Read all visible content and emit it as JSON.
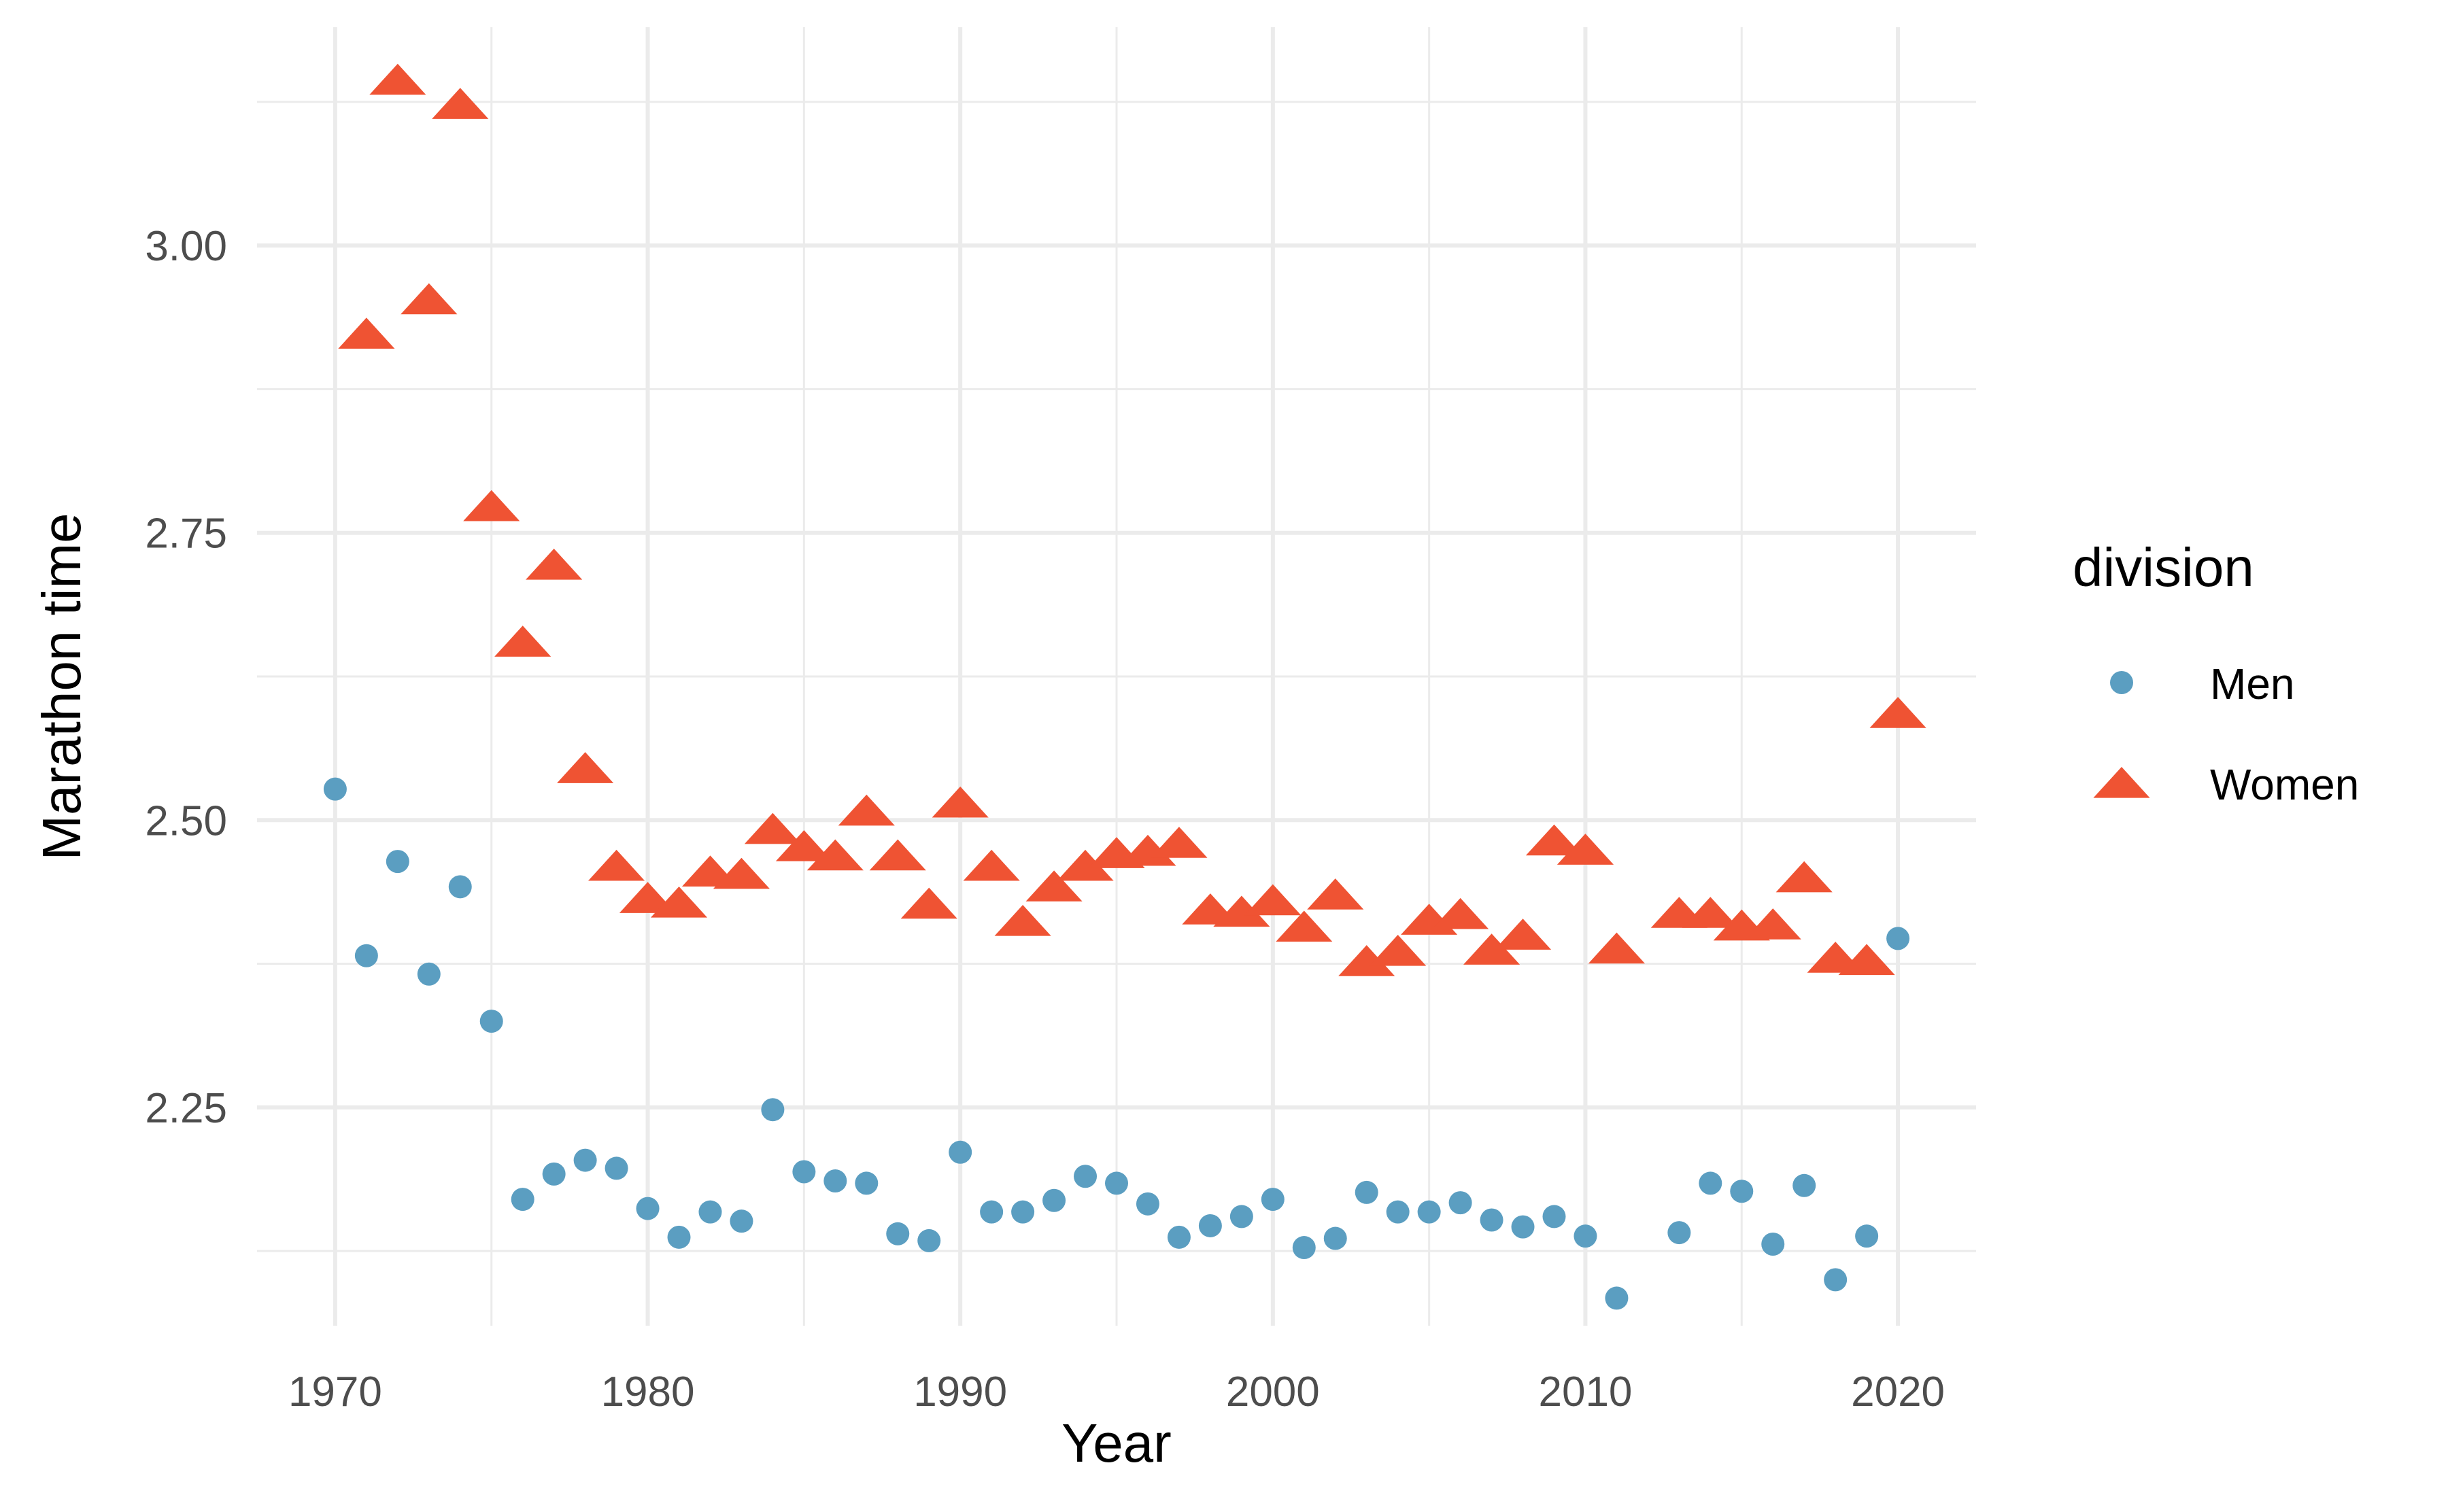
{
  "chart_data": {
    "type": "scatter",
    "xlabel": "Year",
    "ylabel": "Marathon time",
    "xlim": [
      1967.5,
      2022.5
    ],
    "ylim": [
      2.06,
      3.19
    ],
    "x_ticks": [
      1970,
      1980,
      1990,
      2000,
      2010,
      2020
    ],
    "x_tick_labels": [
      "1970",
      "1980",
      "1990",
      "2000",
      "2010",
      "2020"
    ],
    "y_ticks": [
      2.25,
      2.5,
      2.75,
      3.0
    ],
    "y_tick_labels": [
      "2.25",
      "2.50",
      "2.75",
      "3.00"
    ],
    "grid": true,
    "legend": {
      "title": "division",
      "position": "right"
    },
    "series": [
      {
        "name": "Men",
        "color": "#5b9ec1",
        "marker": "circle",
        "points": [
          [
            1970,
            2.527
          ],
          [
            1971,
            2.382
          ],
          [
            1972,
            2.464
          ],
          [
            1973,
            2.366
          ],
          [
            1974,
            2.442
          ],
          [
            1975,
            2.325
          ],
          [
            1976,
            2.17
          ],
          [
            1977,
            2.192
          ],
          [
            1978,
            2.204
          ],
          [
            1979,
            2.197
          ],
          [
            1980,
            2.162
          ],
          [
            1981,
            2.137
          ],
          [
            1982,
            2.159
          ],
          [
            1983,
            2.151
          ],
          [
            1984,
            2.248
          ],
          [
            1985,
            2.194
          ],
          [
            1986,
            2.186
          ],
          [
            1987,
            2.184
          ],
          [
            1988,
            2.14
          ],
          [
            1989,
            2.134
          ],
          [
            1990,
            2.211
          ],
          [
            1991,
            2.159
          ],
          [
            1992,
            2.159
          ],
          [
            1993,
            2.169
          ],
          [
            1994,
            2.19
          ],
          [
            1995,
            2.184
          ],
          [
            1996,
            2.166
          ],
          [
            1997,
            2.137
          ],
          [
            1998,
            2.147
          ],
          [
            1999,
            2.155
          ],
          [
            2000,
            2.17
          ],
          [
            2001,
            2.128
          ],
          [
            2002,
            2.136
          ],
          [
            2003,
            2.176
          ],
          [
            2004,
            2.159
          ],
          [
            2005,
            2.159
          ],
          [
            2006,
            2.167
          ],
          [
            2007,
            2.152
          ],
          [
            2008,
            2.146
          ],
          [
            2009,
            2.155
          ],
          [
            2010,
            2.138
          ],
          [
            2011,
            2.084
          ],
          [
            2013,
            2.141
          ],
          [
            2014,
            2.184
          ],
          [
            2015,
            2.177
          ],
          [
            2016,
            2.131
          ],
          [
            2017,
            2.182
          ],
          [
            2018,
            2.1
          ],
          [
            2019,
            2.138
          ],
          [
            2020,
            2.397
          ]
        ]
      },
      {
        "name": "Women",
        "color": "#ef5333",
        "marker": "triangle",
        "points": [
          [
            1971,
            2.923
          ],
          [
            1972,
            3.144
          ],
          [
            1973,
            2.953
          ],
          [
            1974,
            3.123
          ],
          [
            1975,
            2.773
          ],
          [
            1976,
            2.655
          ],
          [
            1977,
            2.722
          ],
          [
            1978,
            2.545
          ],
          [
            1979,
            2.46
          ],
          [
            1980,
            2.432
          ],
          [
            1981,
            2.428
          ],
          [
            1982,
            2.455
          ],
          [
            1983,
            2.453
          ],
          [
            1984,
            2.492
          ],
          [
            1985,
            2.477
          ],
          [
            1986,
            2.469
          ],
          [
            1987,
            2.508
          ],
          [
            1988,
            2.469
          ],
          [
            1989,
            2.427
          ],
          [
            1990,
            2.515
          ],
          [
            1991,
            2.46
          ],
          [
            1992,
            2.412
          ],
          [
            1993,
            2.442
          ],
          [
            1994,
            2.46
          ],
          [
            1995,
            2.471
          ],
          [
            1996,
            2.473
          ],
          [
            1997,
            2.48
          ],
          [
            1998,
            2.422
          ],
          [
            1999,
            2.42
          ],
          [
            2000,
            2.43
          ],
          [
            2001,
            2.407
          ],
          [
            2002,
            2.435
          ],
          [
            2003,
            2.377
          ],
          [
            2004,
            2.386
          ],
          [
            2005,
            2.413
          ],
          [
            2006,
            2.418
          ],
          [
            2007,
            2.387
          ],
          [
            2008,
            2.4
          ],
          [
            2009,
            2.482
          ],
          [
            2010,
            2.474
          ],
          [
            2011,
            2.388
          ],
          [
            2013,
            2.419
          ],
          [
            2014,
            2.419
          ],
          [
            2015,
            2.408
          ],
          [
            2016,
            2.409
          ],
          [
            2017,
            2.45
          ],
          [
            2018,
            2.38
          ],
          [
            2019,
            2.378
          ],
          [
            2020,
            2.593
          ]
        ]
      }
    ]
  }
}
